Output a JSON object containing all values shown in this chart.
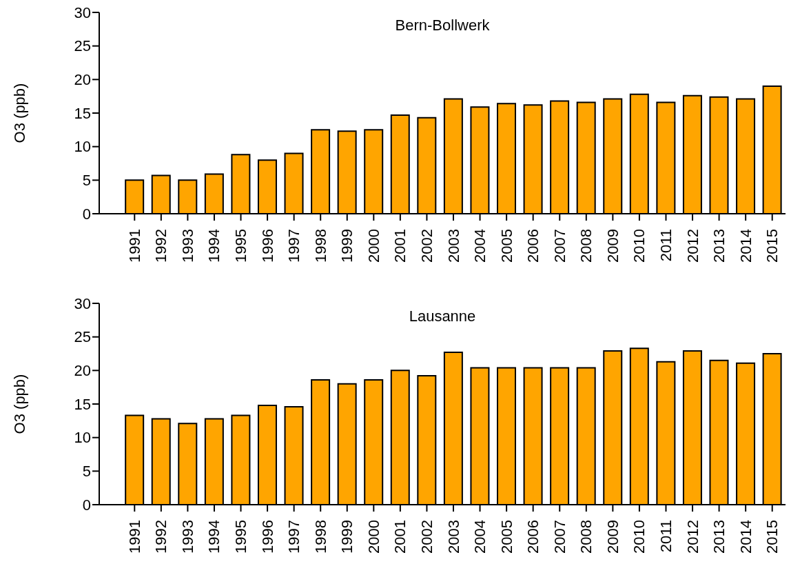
{
  "chart_data": [
    {
      "type": "bar",
      "title": "Bern-Bollwerk",
      "ylabel": "O3 (ppb)",
      "categories": [
        "1991",
        "1992",
        "1993",
        "1994",
        "1995",
        "1996",
        "1997",
        "1998",
        "1999",
        "2000",
        "2001",
        "2002",
        "2003",
        "2004",
        "2005",
        "2006",
        "2007",
        "2008",
        "2009",
        "2010",
        "2011",
        "2012",
        "2013",
        "2014",
        "2015"
      ],
      "values": [
        5.0,
        5.7,
        5.0,
        5.9,
        8.8,
        8.0,
        9.0,
        12.5,
        12.3,
        12.5,
        14.7,
        14.3,
        17.1,
        15.9,
        16.4,
        16.2,
        16.8,
        16.6,
        17.1,
        17.8,
        16.6,
        17.6,
        17.4,
        17.1,
        19.0
      ],
      "color": "#ffa500",
      "ylim": [
        0,
        30
      ],
      "yticks": [
        0,
        5,
        10,
        15,
        20,
        25,
        30
      ],
      "grid": false,
      "legend": false
    },
    {
      "type": "bar",
      "title": "Lausanne",
      "ylabel": "O3 (ppb)",
      "categories": [
        "1991",
        "1992",
        "1993",
        "1994",
        "1995",
        "1996",
        "1997",
        "1998",
        "1999",
        "2000",
        "2001",
        "2002",
        "2003",
        "2004",
        "2005",
        "2006",
        "2007",
        "2008",
        "2009",
        "2010",
        "2011",
        "2012",
        "2013",
        "2014",
        "2015"
      ],
      "values": [
        13.3,
        12.8,
        12.1,
        12.8,
        13.3,
        14.8,
        14.6,
        18.6,
        18.0,
        18.6,
        20.0,
        19.2,
        22.7,
        20.4,
        20.4,
        20.4,
        20.4,
        20.4,
        22.9,
        23.3,
        21.3,
        22.9,
        21.5,
        21.1,
        22.5
      ],
      "color": "#ffa500",
      "ylim": [
        0,
        30
      ],
      "yticks": [
        0,
        5,
        10,
        15,
        20,
        25,
        30
      ],
      "grid": false,
      "legend": false
    }
  ]
}
